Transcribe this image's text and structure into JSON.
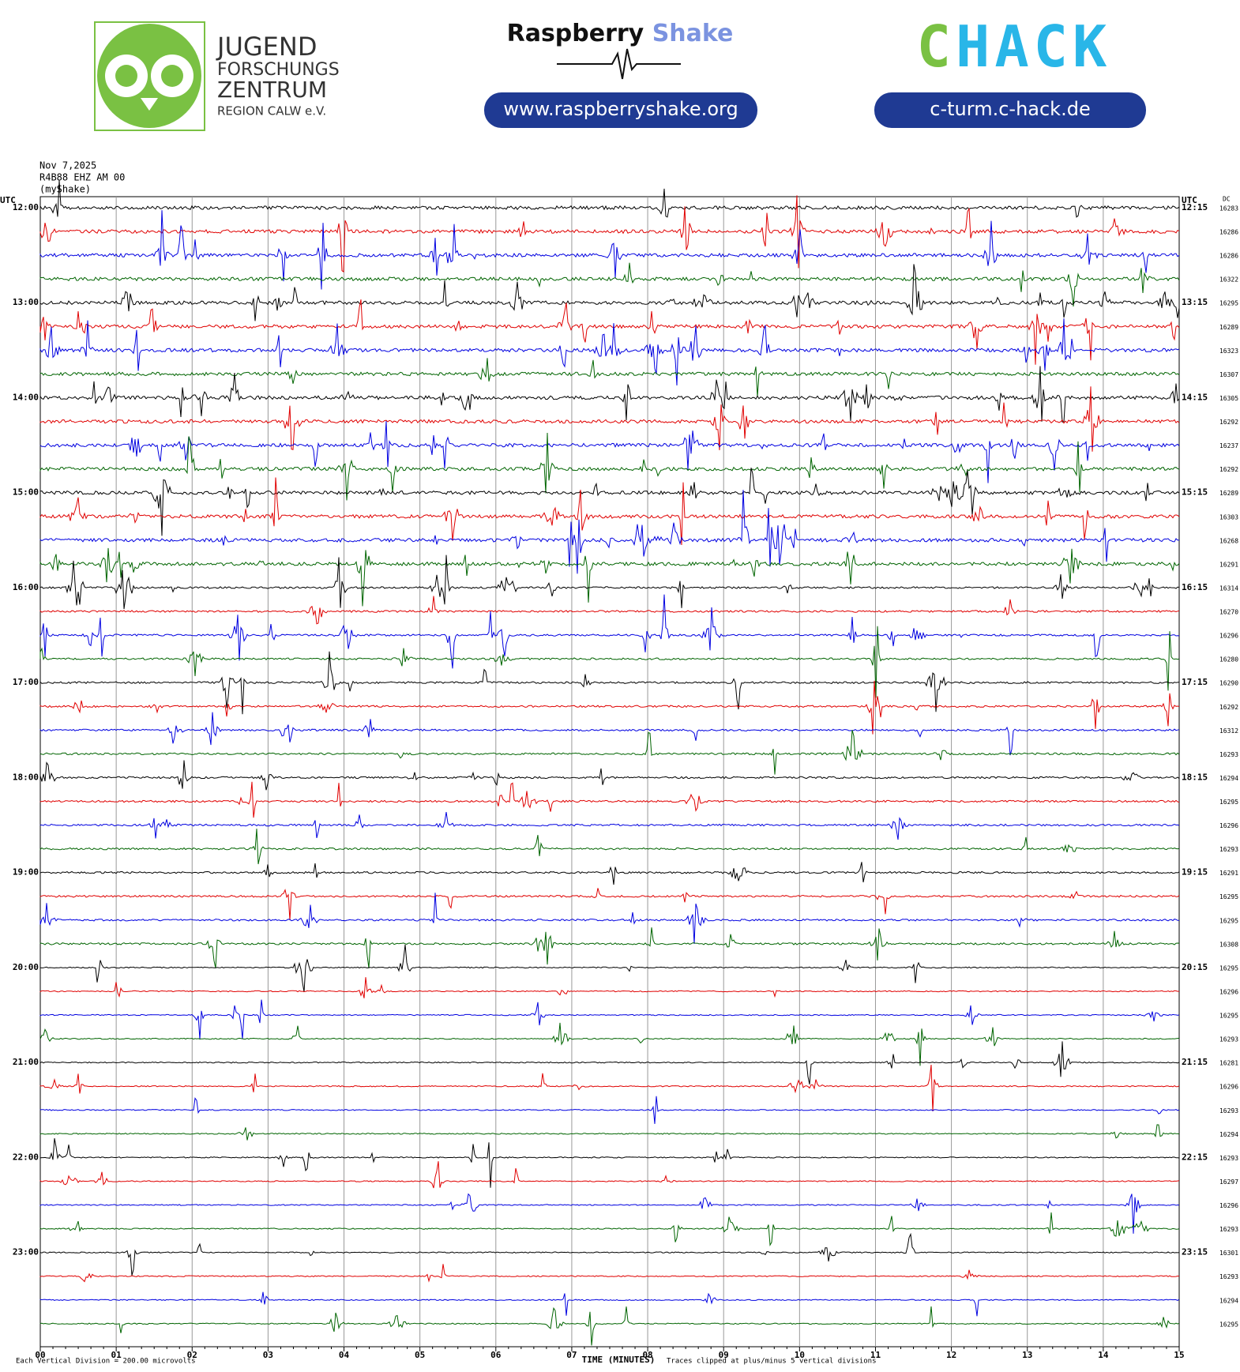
{
  "logos": {
    "jfz_1": "JUGEND",
    "jfz_2": "FORSCHUNGS",
    "jfz_3": "ZENTRUM",
    "jfz_4": "REGION CALW e.V.",
    "rs_1": "Raspberry",
    "rs_2": "Shake",
    "rs_url": "www.raspberryshake.org",
    "ch_1": "C",
    "ch_2": "HACK",
    "ch_url": "c-turm.c-hack.de"
  },
  "header": {
    "date": "Nov 7,2025",
    "station": "R4B88 EHZ AM 00",
    "source": "(myShake)",
    "utc_left": "UTC",
    "utc_right": "UTC",
    "dc": "DC"
  },
  "rows": [
    {
      "left": "12:00",
      "right": "12:15",
      "dc": "16283"
    },
    {
      "dc": "16286"
    },
    {
      "dc": "16286"
    },
    {
      "dc": "16322"
    },
    {
      "left": "13:00",
      "right": "13:15",
      "dc": "16295"
    },
    {
      "dc": "16289"
    },
    {
      "dc": "16323"
    },
    {
      "dc": "16307"
    },
    {
      "left": "14:00",
      "right": "14:15",
      "dc": "16305"
    },
    {
      "dc": "16292"
    },
    {
      "dc": "16237"
    },
    {
      "dc": "16292"
    },
    {
      "left": "15:00",
      "right": "15:15",
      "dc": "16289"
    },
    {
      "dc": "16303"
    },
    {
      "dc": "16268"
    },
    {
      "dc": "16291"
    },
    {
      "left": "16:00",
      "right": "16:15",
      "dc": "16314"
    },
    {
      "dc": "16270"
    },
    {
      "dc": "16296"
    },
    {
      "dc": "16280"
    },
    {
      "left": "17:00",
      "right": "17:15",
      "dc": "16290"
    },
    {
      "dc": "16292"
    },
    {
      "dc": "16312"
    },
    {
      "dc": "16293"
    },
    {
      "left": "18:00",
      "right": "18:15",
      "dc": "16294"
    },
    {
      "dc": "16295"
    },
    {
      "dc": "16296"
    },
    {
      "dc": "16293"
    },
    {
      "left": "19:00",
      "right": "19:15",
      "dc": "16291"
    },
    {
      "dc": "16295"
    },
    {
      "dc": "16295"
    },
    {
      "dc": "16308"
    },
    {
      "left": "20:00",
      "right": "20:15",
      "dc": "16295"
    },
    {
      "dc": "16296"
    },
    {
      "dc": "16295"
    },
    {
      "dc": "16293"
    },
    {
      "left": "21:00",
      "right": "21:15",
      "dc": "16281"
    },
    {
      "dc": "16296"
    },
    {
      "dc": "16293"
    },
    {
      "dc": "16294"
    },
    {
      "left": "22:00",
      "right": "22:15",
      "dc": "16293"
    },
    {
      "dc": "16297"
    },
    {
      "dc": "16296"
    },
    {
      "dc": "16293"
    },
    {
      "left": "23:00",
      "right": "23:15",
      "dc": "16301"
    },
    {
      "dc": "16293"
    },
    {
      "dc": "16294"
    },
    {
      "dc": "16295"
    }
  ],
  "trace_colors": [
    "#000000",
    "#e00000",
    "#0000e0",
    "#006400"
  ],
  "x_ticks": [
    "00",
    "01",
    "02",
    "03",
    "04",
    "05",
    "06",
    "07",
    "08",
    "09",
    "10",
    "11",
    "12",
    "13",
    "14",
    "15"
  ],
  "footer": {
    "scale_note": "Each Vertical Division =  200.00 microvolts",
    "x_label": "TIME (MINUTES)",
    "clip_note": "Traces clipped at plus/minus 5 vertical divisions"
  }
}
